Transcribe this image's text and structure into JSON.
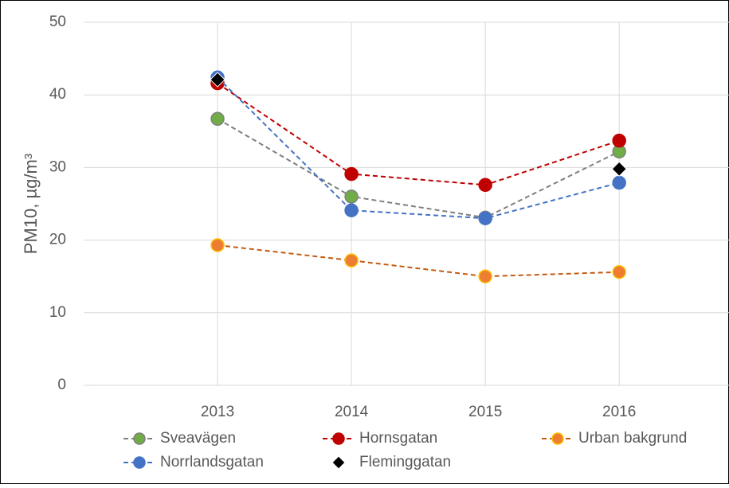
{
  "chart_data": {
    "type": "line",
    "y_label": "PM10, µg/m³",
    "x": [
      2013,
      2014,
      2015,
      2016
    ],
    "xlim": [
      2012,
      2016.82
    ],
    "xticks": [
      2013,
      2014,
      2015,
      2016
    ],
    "ylim": [
      0,
      50
    ],
    "yticks": [
      0,
      10,
      20,
      30,
      40,
      50
    ],
    "grid": true,
    "legend": "bottom",
    "series": [
      {
        "name": "Sveavägen",
        "color": "#7f7f7f",
        "marker_color": "#70ad47",
        "marker": "circle",
        "line": true,
        "values": [
          36.7,
          26.0,
          23.1,
          32.2
        ]
      },
      {
        "name": "Hornsgatan",
        "color": "#c00000",
        "marker_color": "#c00000",
        "marker": "circle",
        "line": true,
        "values": [
          41.6,
          29.1,
          27.6,
          33.7
        ]
      },
      {
        "name": "Urban bakgrund",
        "color": "#c55a11",
        "marker_color": "#ed7d31",
        "edge_color": "#ffc000",
        "marker": "circle",
        "line": true,
        "values": [
          19.3,
          17.2,
          15.0,
          15.6
        ]
      },
      {
        "name": "Norrlandsgatan",
        "color": "#4472c4",
        "marker_color": "#4472c4",
        "marker": "circle",
        "line": true,
        "values": [
          42.4,
          24.1,
          23.0,
          27.9
        ]
      },
      {
        "name": "Fleminggatan",
        "color": "#000000",
        "marker_color": "#000000",
        "marker": "diamond",
        "line": false,
        "values": [
          42.1,
          null,
          null,
          29.8
        ]
      }
    ]
  }
}
